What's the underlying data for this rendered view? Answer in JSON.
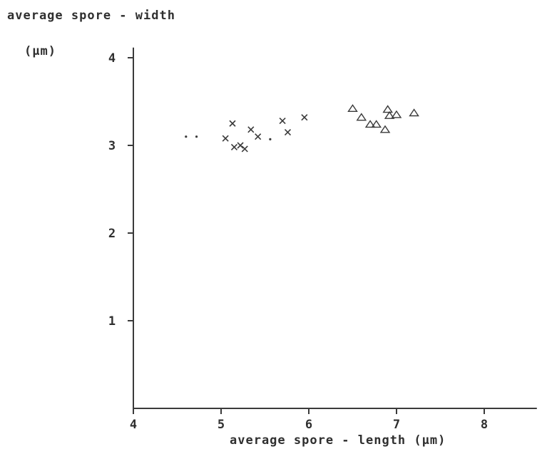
{
  "chart_data": {
    "type": "scatter",
    "ylabel_lines": [
      "average spore - width",
      "(μm)"
    ],
    "xlabel": "average spore - length  (μm)",
    "xlim": [
      4,
      8.6
    ],
    "ylim": [
      0,
      4.1
    ],
    "x_ticks": [
      4,
      5,
      6,
      7,
      8
    ],
    "y_ticks": [
      1,
      2,
      3,
      4
    ],
    "grid": false,
    "series": [
      {
        "marker": "dot",
        "points": [
          [
            4.6,
            3.1
          ],
          [
            4.72,
            3.1
          ],
          [
            5.56,
            3.07
          ]
        ]
      },
      {
        "marker": "x",
        "points": [
          [
            5.05,
            3.08
          ],
          [
            5.13,
            3.25
          ],
          [
            5.15,
            2.98
          ],
          [
            5.22,
            3.0
          ],
          [
            5.27,
            2.96
          ],
          [
            5.34,
            3.18
          ],
          [
            5.42,
            3.1
          ],
          [
            5.7,
            3.28
          ],
          [
            5.76,
            3.15
          ],
          [
            5.95,
            3.32
          ]
        ]
      },
      {
        "marker": "triangle",
        "points": [
          [
            6.5,
            3.42
          ],
          [
            6.6,
            3.32
          ],
          [
            6.7,
            3.24
          ],
          [
            6.77,
            3.24
          ],
          [
            6.87,
            3.18
          ],
          [
            6.9,
            3.41
          ],
          [
            6.92,
            3.34
          ],
          [
            7.0,
            3.35
          ],
          [
            7.2,
            3.37
          ]
        ]
      }
    ]
  }
}
